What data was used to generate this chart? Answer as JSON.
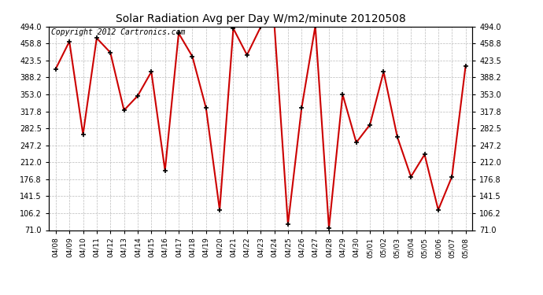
{
  "title": "Solar Radiation Avg per Day W/m2/minute 20120508",
  "copyright_text": "Copyright 2012 Cartronics.com",
  "dates": [
    "04/08",
    "04/09",
    "04/10",
    "04/11",
    "04/12",
    "04/13",
    "04/14",
    "04/15",
    "04/16",
    "04/17",
    "04/18",
    "04/19",
    "04/20",
    "04/21",
    "04/22",
    "04/23",
    "04/24",
    "04/25",
    "04/26",
    "04/27",
    "04/28",
    "04/29",
    "04/30",
    "05/01",
    "05/02",
    "05/03",
    "05/04",
    "05/05",
    "05/06",
    "05/07",
    "05/08"
  ],
  "values": [
    406,
    463,
    270,
    470,
    440,
    320,
    350,
    400,
    195,
    480,
    432,
    325,
    113,
    490,
    435,
    493,
    500,
    83,
    325,
    495,
    75,
    353,
    253,
    290,
    400,
    265,
    182,
    228,
    113,
    182,
    412
  ],
  "line_color": "#cc0000",
  "marker_color": "#000000",
  "bg_color": "#ffffff",
  "plot_bg_color": "#ffffff",
  "grid_color": "#bbbbbb",
  "ylim": [
    71.0,
    494.0
  ],
  "yticks": [
    71.0,
    106.2,
    141.5,
    176.8,
    212.0,
    247.2,
    282.5,
    317.8,
    353.0,
    388.2,
    423.5,
    458.8,
    494.0
  ],
  "title_fontsize": 10,
  "copyright_fontsize": 7
}
